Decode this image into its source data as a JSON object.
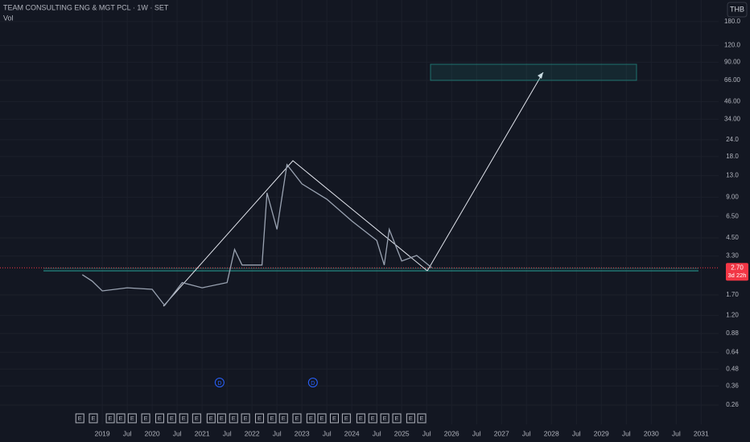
{
  "chart_data": {
    "type": "line",
    "title": "TEAM CONSULTING ENG & MGT PCL · 1W · SET",
    "subtitle": "Vol",
    "currency": "THB",
    "log_scale": true,
    "grid": true,
    "x": [
      2018.6,
      2018.8,
      2019.0,
      2019.5,
      2020.0,
      2020.25,
      2020.6,
      2021.0,
      2021.5,
      2021.65,
      2021.8,
      2022.2,
      2022.3,
      2022.5,
      2022.7,
      2023.0,
      2023.5,
      2024.0,
      2024.5,
      2024.65,
      2024.75,
      2025.0,
      2025.3,
      2025.6
    ],
    "series": [
      {
        "name": "Price",
        "color": "#9aa3b2",
        "values": [
          2.4,
          2.15,
          1.82,
          1.92,
          1.87,
          1.42,
          2.1,
          1.92,
          2.1,
          3.7,
          2.83,
          2.83,
          9.7,
          5.2,
          15.7,
          11.3,
          8.7,
          6.0,
          4.3,
          2.83,
          5.2,
          3.03,
          3.33,
          2.71
        ]
      }
    ],
    "last_price": {
      "value": 2.7,
      "label": "2.70"
    },
    "countdown": "3d 22h",
    "xlim": [
      2016.95,
      2031.35
    ],
    "ylim": [
      0.233,
      260
    ],
    "xticks": [
      2019,
      {
        "value": 2019.5,
        "label": "Jul"
      },
      2020,
      {
        "value": 2020.5,
        "label": "Jul"
      },
      2021,
      {
        "value": 2021.5,
        "label": "Jul"
      },
      2022,
      {
        "value": 2022.5,
        "label": "Jul"
      },
      2023,
      {
        "value": 2023.5,
        "label": "Jul"
      },
      2024,
      {
        "value": 2024.5,
        "label": "Jul"
      },
      2025,
      {
        "value": 2025.5,
        "label": "Jul"
      },
      2026,
      {
        "value": 2026.5,
        "label": "Jul"
      },
      2027,
      {
        "value": 2027.5,
        "label": "Jul"
      },
      2028,
      {
        "value": 2028.5,
        "label": "Jul"
      },
      2029,
      {
        "value": 2029.5,
        "label": "Jul"
      },
      2030,
      {
        "value": 2030.5,
        "label": "Jul"
      },
      2031
    ],
    "yticks": [
      {
        "value": 180,
        "label": "180.0"
      },
      {
        "value": 120,
        "label": "120.0"
      },
      {
        "value": 90,
        "label": "90.00"
      },
      {
        "value": 66,
        "label": "66.00"
      },
      {
        "value": 46,
        "label": "46.00"
      },
      {
        "value": 34,
        "label": "34.00"
      },
      {
        "value": 24,
        "label": "24.0"
      },
      {
        "value": 18,
        "label": "18.0"
      },
      {
        "value": 13,
        "label": "13.0"
      },
      {
        "value": 9,
        "label": "9.00"
      },
      {
        "value": 6.5,
        "label": "6.50"
      },
      {
        "value": 4.5,
        "label": "4.50"
      },
      {
        "value": 3.3,
        "label": "3.30"
      },
      {
        "value": 1.7,
        "label": "1.70"
      },
      {
        "value": 1.2,
        "label": "1.20"
      },
      0.88,
      0.64,
      0.48,
      0.36,
      0.26
    ],
    "events": {
      "x": [
        2018.55,
        2018.82,
        2019.16,
        2019.37,
        2019.6,
        2019.87,
        2020.15,
        2020.39,
        2020.63,
        2020.89,
        2021.18,
        2021.39,
        2021.63,
        2021.87,
        2022.15,
        2022.4,
        2022.63,
        2022.9,
        2023.18,
        2023.4,
        2023.65,
        2023.89,
        2024.18,
        2024.42,
        2024.66,
        2024.9,
        2025.18,
        2025.4
      ],
      "labels": [
        "E",
        "E",
        "E",
        "E",
        "E",
        "E",
        "E",
        "E",
        "E",
        "E",
        "E",
        "E",
        "E",
        "E",
        "E",
        "E",
        "E",
        "E",
        "E",
        "E",
        "E",
        "E",
        "E",
        "E",
        "E",
        "E",
        "E",
        "E"
      ]
    },
    "dividends": {
      "x": [
        2021.35,
        2023.22
      ],
      "labels": [
        "D",
        "D"
      ]
    }
  }
}
